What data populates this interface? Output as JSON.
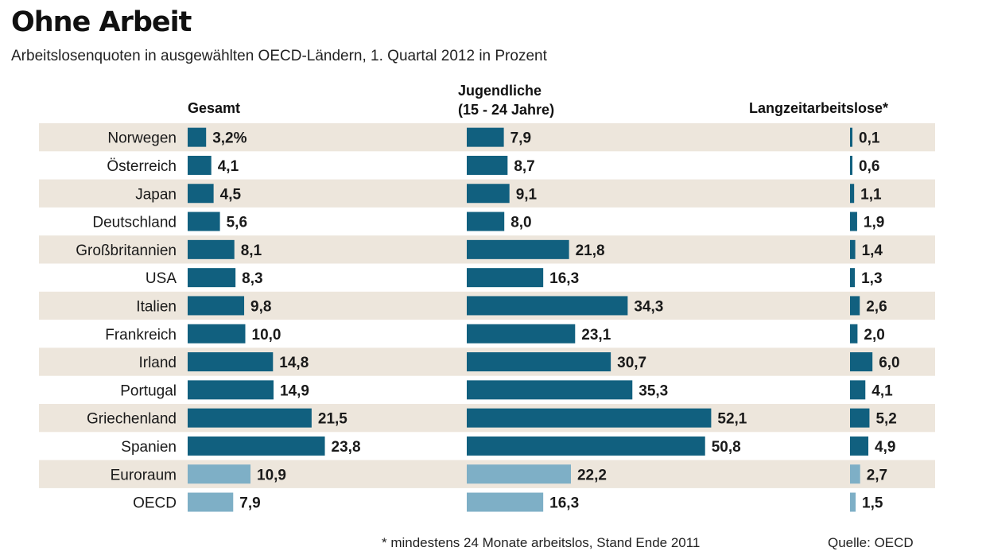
{
  "title": "Ohne Arbeit",
  "subtitle": "Arbeitslosenquoten in ausgewählten OECD-Ländern, 1. Quartal 2012 in Prozent",
  "footnote": "* mindestens 24 Monate arbeitslos, Stand Ende 2011",
  "source": "Quelle: OECD",
  "colors": {
    "bar": "#11607f",
    "bar_aggregate": "#7eafc6",
    "band": "#ede6dc"
  },
  "chart_data": {
    "type": "bar",
    "orientation": "horizontal",
    "title": "Ohne Arbeit",
    "subtitle": "Arbeitslosenquoten in ausgewählten OECD-Ländern, 1. Quartal 2012 in Prozent",
    "unit": "%",
    "categories": [
      "Norwegen",
      "Österreich",
      "Japan",
      "Deutschland",
      "Großbritannien",
      "USA",
      "Italien",
      "Frankreich",
      "Irland",
      "Portugal",
      "Griechenland",
      "Spanien",
      "Euroraum",
      "OECD"
    ],
    "aggregate_categories": [
      "Euroraum",
      "OECD"
    ],
    "series": [
      {
        "name": "Gesamt",
        "values": [
          3.2,
          4.1,
          4.5,
          5.6,
          8.1,
          8.3,
          9.8,
          10.0,
          14.8,
          14.9,
          21.5,
          23.8,
          10.9,
          7.9
        ],
        "labels": [
          "3,2%",
          "4,1",
          "4,5",
          "5,6",
          "8,1",
          "8,3",
          "9,8",
          "10,0",
          "14,8",
          "14,9",
          "21,5",
          "23,8",
          "10,9",
          "7,9"
        ]
      },
      {
        "name": "Jugendliche (15 - 24 Jahre)",
        "header_lines": [
          "Jugendliche",
          "(15 - 24 Jahre)"
        ],
        "values": [
          7.9,
          8.7,
          9.1,
          8.0,
          21.8,
          16.3,
          34.3,
          23.1,
          30.7,
          35.3,
          52.1,
          50.8,
          22.2,
          16.3
        ],
        "labels": [
          "7,9",
          "8,7",
          "9,1",
          "8,0",
          "21,8",
          "16,3",
          "34,3",
          "23,1",
          "30,7",
          "35,3",
          "52,1",
          "50,8",
          "22,2",
          "16,3"
        ]
      },
      {
        "name": "Langzeitarbeitslose*",
        "values": [
          0.1,
          0.6,
          1.1,
          1.9,
          1.4,
          1.3,
          2.6,
          2.0,
          6.0,
          4.1,
          5.2,
          4.9,
          2.7,
          1.5
        ],
        "labels": [
          "0,1",
          "0,6",
          "1,1",
          "1,9",
          "1,4",
          "1,3",
          "2,6",
          "2,0",
          "6,0",
          "4,1",
          "5,2",
          "4,9",
          "2,7",
          "1,5"
        ]
      }
    ]
  }
}
